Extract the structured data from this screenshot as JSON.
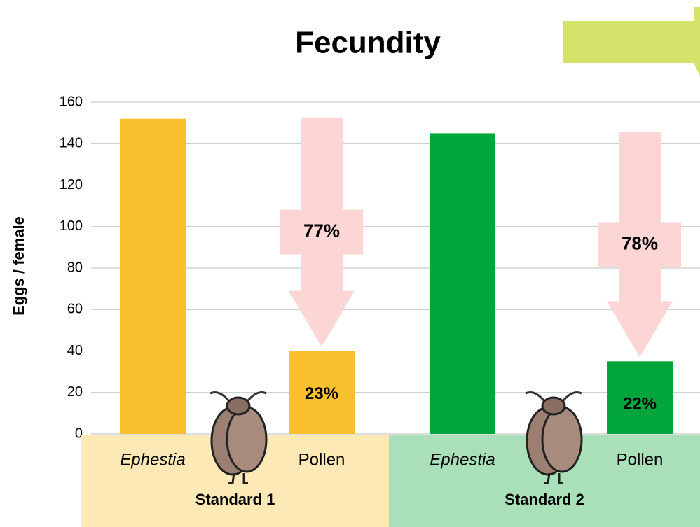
{
  "chart_data": {
    "type": "bar",
    "title": "Fecundity",
    "y_label": "Eggs / female",
    "categories": [
      "Ephestia",
      "Pollen",
      "Ephestia",
      "Pollen"
    ],
    "groups": [
      "Standard 1",
      "Standard 2"
    ],
    "values": [
      152,
      40,
      145,
      35
    ],
    "colors": [
      "#fbc02d",
      "#fbc02d",
      "#00a63c",
      "#00a63c"
    ],
    "group_colors": [
      "#fde9b5",
      "#a9dfb9"
    ],
    "reduction_labels": [
      "77%",
      "78%"
    ],
    "share_labels": [
      "23%",
      "22%"
    ],
    "ylim": [
      0,
      160
    ],
    "yticks": [
      0,
      20,
      40,
      60,
      80,
      100,
      120,
      140,
      160
    ],
    "grid": true
  }
}
